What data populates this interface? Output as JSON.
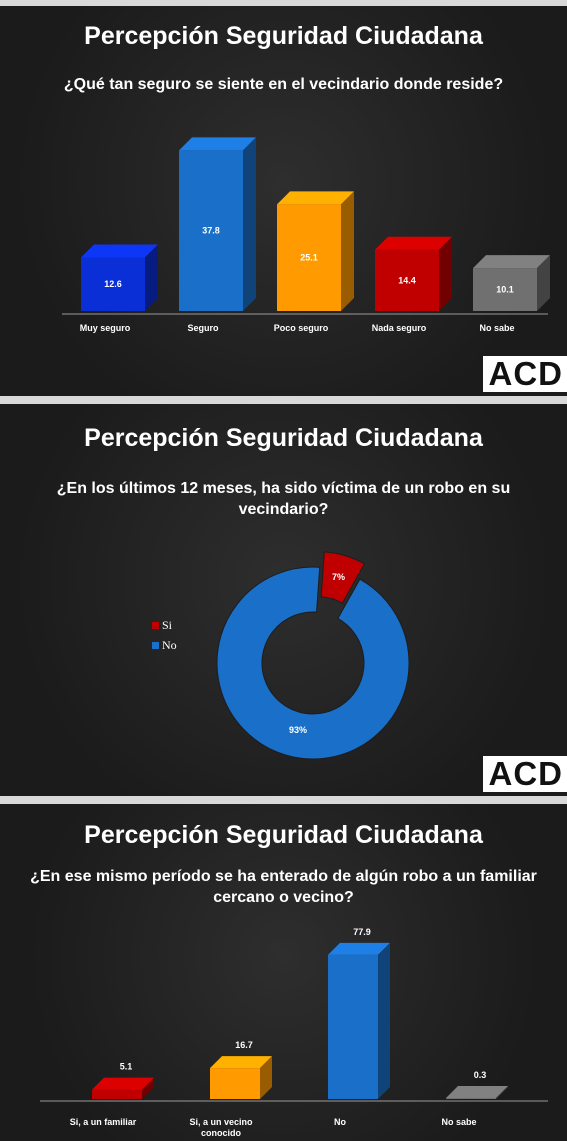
{
  "panels": [
    {
      "title": "Percepción Seguridad Ciudadana",
      "question": "¿Qué tan seguro se siente en el vecindario donde reside?",
      "logo": "ACD"
    },
    {
      "title": "Percepción Seguridad Ciudadana",
      "question": "¿En los últimos 12 meses, ha sido víctima de un robo en su vecindario?",
      "logo": "ACD"
    },
    {
      "title": "Percepción Seguridad Ciudadana",
      "question": "¿En ese mismo período se ha enterado de algún robo a un familiar cercano o vecino?"
    }
  ],
  "chart_data": [
    {
      "type": "bar",
      "categories": [
        "Muy seguro",
        "Seguro",
        "Poco seguro",
        "Nada seguro",
        "No sabe"
      ],
      "values": [
        12.6,
        37.8,
        25.1,
        14.4,
        10.1
      ],
      "data_labels": [
        "12.6",
        "37.8",
        "25.1",
        "14.4",
        "10.1"
      ],
      "colors": [
        "#0b2fd6",
        "#1a6fc9",
        "#ff9a00",
        "#c00000",
        "#707070"
      ],
      "label_position": "inside",
      "ylim": [
        0,
        40
      ]
    },
    {
      "type": "pie",
      "style": "donut",
      "labels": [
        "Si",
        "No"
      ],
      "values": [
        7,
        93
      ],
      "data_labels": [
        "7%",
        "93%"
      ],
      "colors": [
        "#c00000",
        "#1a6fc9"
      ],
      "legend": "left"
    },
    {
      "type": "bar",
      "categories": [
        "Si, a un familiar",
        "Si, a un vecino conocido",
        "No",
        "No sabe"
      ],
      "values": [
        5.1,
        16.7,
        77.9,
        0.3
      ],
      "data_labels": [
        "5.1",
        "16.7",
        "77.9",
        "0.3"
      ],
      "colors": [
        "#c00000",
        "#ff9a00",
        "#1a6fc9",
        "#707070"
      ],
      "label_position": "above",
      "ylim": [
        0,
        80
      ]
    }
  ]
}
